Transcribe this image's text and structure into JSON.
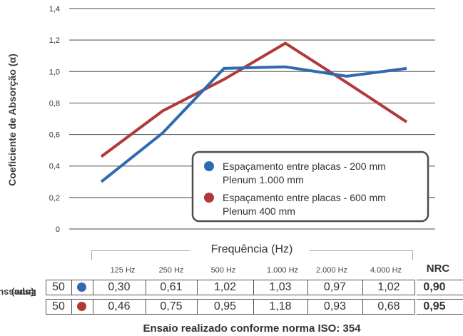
{
  "chart_data": {
    "type": "line",
    "ylabel": "Coeficiente de Absorção (α)",
    "xlabel": "Frequência (Hz)",
    "categories": [
      "125 Hz",
      "250 Hz",
      "500 Hz",
      "1.000 Hz",
      "2.000 Hz",
      "4.000 Hz"
    ],
    "ylim": [
      0,
      1.4
    ],
    "yticks": [
      "0",
      "0,2",
      "0,4",
      "0,6",
      "0,8",
      "1,0",
      "1,2",
      "1,4"
    ],
    "grid": true,
    "legend_position": "bottom-right",
    "series": [
      {
        "name": "Espaçamento entre placas - 200 mm",
        "name_line2": "Plenum 1.000 mm",
        "color": "#2e6ab0",
        "values": [
          0.3,
          0.61,
          1.02,
          1.03,
          0.97,
          1.02
        ]
      },
      {
        "name": "Espaçamento entre placas - 600 mm",
        "name_line2": "Plenum 400 mm",
        "color": "#b03a3a",
        "values": [
          0.46,
          0.75,
          0.95,
          1.18,
          0.93,
          0.68
        ]
      }
    ]
  },
  "table": {
    "row_header": [
      "Espessura",
      "(mm)"
    ],
    "frequency_title": "Frequência (Hz)",
    "frequencies": [
      "125 Hz",
      "250 Hz",
      "500 Hz",
      "1.000 Hz",
      "2.000 Hz",
      "4.000 Hz"
    ],
    "nrc_header": "NRC",
    "rows": [
      {
        "thickness": "50",
        "color": "#2e6ab0",
        "values": [
          "0,30",
          "0,61",
          "1,02",
          "1,03",
          "0,97",
          "1,02"
        ],
        "nrc": "0,90"
      },
      {
        "thickness": "50",
        "color": "#b03a3a",
        "values": [
          "0,46",
          "0,75",
          "0,95",
          "1,18",
          "0,93",
          "0,68"
        ],
        "nrc": "0,95"
      }
    ]
  },
  "footnote": "Ensaio realizado conforme norma ISO: 354"
}
